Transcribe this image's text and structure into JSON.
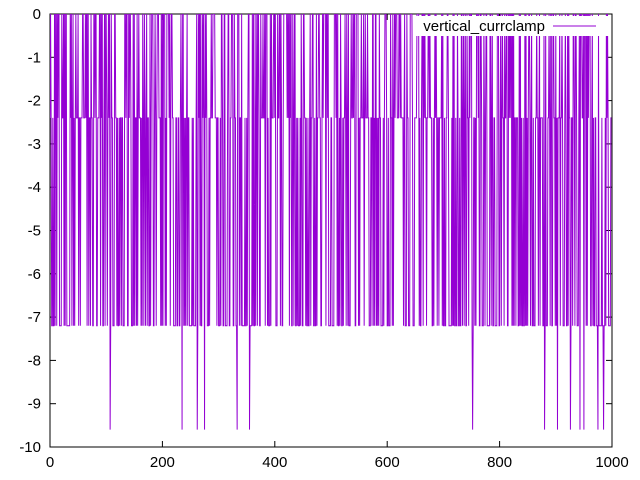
{
  "chart_data": {
    "type": "line",
    "title": "",
    "xlabel": "",
    "ylabel": "",
    "xlim": [
      0,
      1000
    ],
    "ylim": [
      -10,
      0
    ],
    "xticks": [
      0,
      200,
      400,
      600,
      800,
      1000
    ],
    "yticks": [
      0,
      -1,
      -2,
      -3,
      -4,
      -5,
      -6,
      -7,
      -8,
      -9,
      -10
    ],
    "xtick_labels": [
      "0",
      "200",
      "400",
      "600",
      "800",
      "1000"
    ],
    "ytick_labels": [
      "0",
      "-1",
      "-2",
      "-3",
      "-4",
      "-5",
      "-6",
      "-7",
      "-8",
      "-9",
      "-10"
    ],
    "grid": false,
    "legend_position": "top-right",
    "levels": [
      0,
      -2.4,
      -7.2,
      -9.6
    ],
    "series": [
      {
        "name": "vertical_currclamp",
        "color": "#9400d3",
        "x_range": [
          0,
          999
        ],
        "dominant_levels": [
          0,
          -2.4,
          -7.2
        ],
        "spike_level": -9.6,
        "spike_x": [
          107,
          235,
          262,
          275,
          333,
          355,
          752,
          880,
          903,
          926,
          943,
          950,
          975,
          985
        ]
      }
    ]
  }
}
